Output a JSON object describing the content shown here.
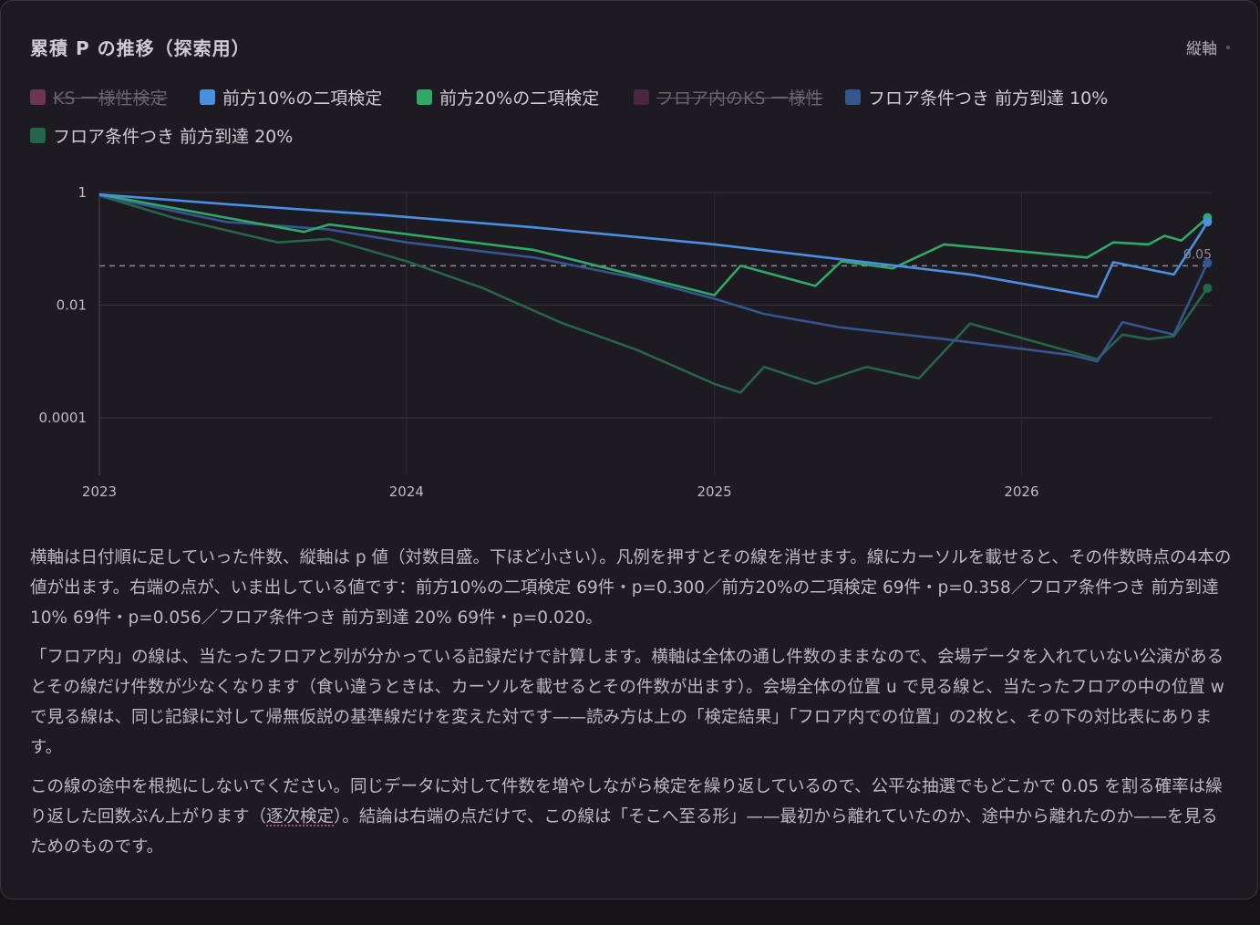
{
  "title": "累積 P の推移（探索用）",
  "axis_toggle": {
    "label": "縦軸"
  },
  "legend": [
    {
      "label": "KS 一様性検定",
      "color": "#b04a82",
      "hidden": true
    },
    {
      "label": "前方10%の二項検定",
      "color": "#4a90e2",
      "hidden": false
    },
    {
      "label": "前方20%の二項検定",
      "color": "#2fa868",
      "hidden": false
    },
    {
      "label": "フロア内のKS 一様性",
      "color": "#6a3458",
      "hidden": true
    },
    {
      "label": "フロア条件つき 前方到達 10%",
      "color": "#34558e",
      "hidden": false
    },
    {
      "label": "フロア条件つき 前方到達 20%",
      "color": "#25654a",
      "hidden": false
    }
  ],
  "chart_data": {
    "type": "line",
    "x_type": "date",
    "y_scale": "log",
    "ylim": [
      0.0001,
      1
    ],
    "y_ticks": [
      {
        "value": 1,
        "label": "1"
      },
      {
        "value": 0.01,
        "label": "0.01"
      },
      {
        "value": 0.0001,
        "label": "0.0001"
      }
    ],
    "x_ticks": [
      {
        "value": "2023-01-01",
        "label": "2023"
      },
      {
        "value": "2024-01-01",
        "label": "2024"
      },
      {
        "value": "2025-01-01",
        "label": "2025"
      },
      {
        "value": "2026-01-01",
        "label": "2026"
      }
    ],
    "xlim": [
      "2023-01-01",
      "2026-08-15"
    ],
    "threshold": {
      "value": 0.05,
      "label": "0.05"
    },
    "grid": true,
    "series": [
      {
        "name": "前方10%の二項検定",
        "color": "#4a90e2",
        "points": [
          [
            "2023-01-01",
            0.92
          ],
          [
            "2023-06-01",
            0.62
          ],
          [
            "2023-12-01",
            0.4
          ],
          [
            "2024-06-01",
            0.24
          ],
          [
            "2025-01-01",
            0.12
          ],
          [
            "2025-06-01",
            0.065
          ],
          [
            "2025-11-01",
            0.035
          ],
          [
            "2026-04-01",
            0.014
          ],
          [
            "2026-04-20",
            0.058
          ],
          [
            "2026-07-01",
            0.035
          ],
          [
            "2026-08-01",
            0.18
          ],
          [
            "2026-08-10",
            0.3
          ]
        ]
      },
      {
        "name": "前方20%の二項検定",
        "color": "#2fa868",
        "points": [
          [
            "2023-01-01",
            0.92
          ],
          [
            "2023-09-01",
            0.2
          ],
          [
            "2023-10-01",
            0.27
          ],
          [
            "2024-06-01",
            0.095
          ],
          [
            "2025-01-01",
            0.015
          ],
          [
            "2025-02-01",
            0.05
          ],
          [
            "2025-05-01",
            0.022
          ],
          [
            "2025-06-01",
            0.06
          ],
          [
            "2025-08-01",
            0.045
          ],
          [
            "2025-10-01",
            0.12
          ],
          [
            "2026-03-20",
            0.07
          ],
          [
            "2026-04-20",
            0.13
          ],
          [
            "2026-06-01",
            0.12
          ],
          [
            "2026-06-20",
            0.17
          ],
          [
            "2026-07-10",
            0.14
          ],
          [
            "2026-08-10",
            0.358
          ]
        ]
      },
      {
        "name": "フロア条件つき 前方到達 10%",
        "color": "#34558e",
        "points": [
          [
            "2023-01-01",
            0.88
          ],
          [
            "2023-06-01",
            0.3
          ],
          [
            "2023-10-01",
            0.22
          ],
          [
            "2024-01-01",
            0.13
          ],
          [
            "2024-06-01",
            0.07
          ],
          [
            "2024-10-01",
            0.03
          ],
          [
            "2025-01-01",
            0.013
          ],
          [
            "2025-03-01",
            0.007
          ],
          [
            "2025-06-01",
            0.004
          ],
          [
            "2025-10-01",
            0.0025
          ],
          [
            "2026-03-01",
            0.0013
          ],
          [
            "2026-04-01",
            0.001
          ],
          [
            "2026-05-01",
            0.005
          ],
          [
            "2026-07-01",
            0.003
          ],
          [
            "2026-08-10",
            0.056
          ]
        ]
      },
      {
        "name": "フロア条件つき 前方到達 20%",
        "color": "#25654a",
        "points": [
          [
            "2023-01-01",
            0.88
          ],
          [
            "2023-04-01",
            0.35
          ],
          [
            "2023-08-01",
            0.13
          ],
          [
            "2023-10-01",
            0.15
          ],
          [
            "2024-01-01",
            0.06
          ],
          [
            "2024-04-01",
            0.02
          ],
          [
            "2024-07-01",
            0.005
          ],
          [
            "2024-10-01",
            0.0016
          ],
          [
            "2025-01-01",
            0.0004
          ],
          [
            "2025-02-01",
            0.00028
          ],
          [
            "2025-03-01",
            0.0008
          ],
          [
            "2025-05-01",
            0.0004
          ],
          [
            "2025-07-01",
            0.0008
          ],
          [
            "2025-09-01",
            0.0005
          ],
          [
            "2025-11-01",
            0.0047
          ],
          [
            "2026-04-01",
            0.0011
          ],
          [
            "2026-05-01",
            0.003
          ],
          [
            "2026-06-01",
            0.0025
          ],
          [
            "2026-07-01",
            0.0028
          ],
          [
            "2026-08-10",
            0.02
          ]
        ]
      }
    ]
  },
  "description": {
    "p1": "横軸は日付順に足していった件数、縦軸は p 値（対数目盛。下ほど小さい）。凡例を押すとその線を消せます。線にカーソルを載せると、その件数時点の4本の値が出ます。右端の点が、いま出している値です：前方10%の二項検定 69件・p=0.300／前方20%の二項検定 69件・p=0.358／フロア条件つき 前方到達 10% 69件・p=0.056／フロア条件つき 前方到達 20% 69件・p=0.020。",
    "p2": "「フロア内」の線は、当たったフロアと列が分かっている記録だけで計算します。横軸は全体の通し件数のままなので、会場データを入れていない公演があるとその線だけ件数が少なくなります（食い違うときは、カーソルを載せるとその件数が出ます）。会場全体の位置 u で見る線と、当たったフロアの中の位置 w で見る線は、同じ記録に対して帰無仮説の基準線だけを変えた対です——読み方は上の「検定結果」「フロア内での位置」の2枚と、その下の対比表にあります。",
    "p3_before": "この線の途中を根拠にしないでください。同じデータに対して件数を増やしながら検定を繰り返しているので、公平な抽選でもどこかで 0.05 を割る確率は繰り返した回数ぶん上がります（",
    "p3_term": "逐次検定",
    "p3_after": "）。結論は右端の点だけで、この線は「そこへ至る形」——最初から離れていたのか、途中から離れたのか——を見るためのものです。"
  }
}
